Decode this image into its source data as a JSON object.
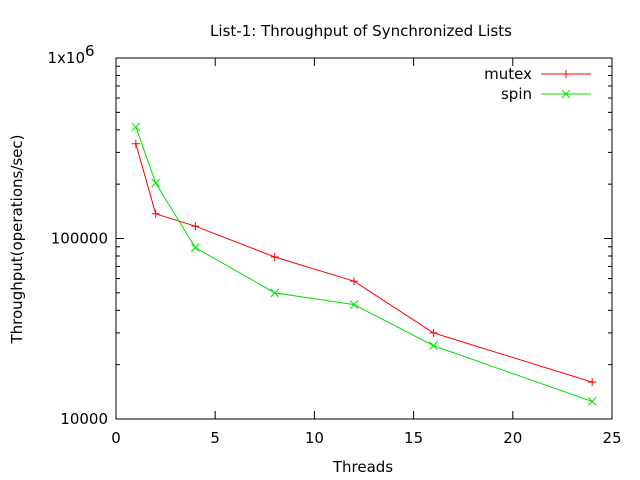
{
  "chart_data": {
    "type": "line",
    "title": "List-1: Throughput of Synchronized Lists",
    "xlabel": "Threads",
    "ylabel": "Throughput(operations/sec)",
    "xlim": [
      0,
      25
    ],
    "ylim": [
      10000,
      1000000
    ],
    "yscale": "log",
    "grid": false,
    "legend_position": "top-right",
    "x_ticks": [
      0,
      5,
      10,
      15,
      20,
      25
    ],
    "x_tick_labels": [
      "0",
      "5",
      "10",
      "15",
      "20",
      "25"
    ],
    "y_ticks": [
      10000,
      100000,
      1000000
    ],
    "y_tick_labels": [
      "10000",
      "100000",
      "1x10"
    ],
    "y_top_tick_exponent": "6",
    "series": [
      {
        "name": "mutex",
        "color": "#ff0000",
        "marker": "+",
        "x": [
          1,
          2,
          4,
          8,
          12,
          16,
          24
        ],
        "values": [
          335000,
          137000,
          117000,
          79000,
          58000,
          30000,
          16000
        ]
      },
      {
        "name": "spin",
        "color": "#00e000",
        "marker": "x",
        "x": [
          1,
          2,
          4,
          8,
          12,
          16,
          24
        ],
        "values": [
          415000,
          203000,
          89000,
          50000,
          43000,
          25500,
          12500
        ]
      }
    ]
  }
}
